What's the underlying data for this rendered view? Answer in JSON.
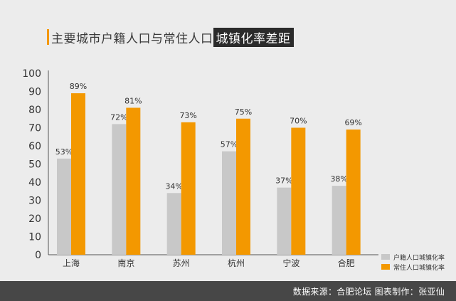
{
  "title": {
    "main": "主要城市户籍人口与常住人口",
    "highlight": "城镇化率差距"
  },
  "footer": "数据来源：合肥论坛   图表制作：张亚仙",
  "colors": {
    "registered": "#c8c8c8",
    "resident": "#f39800",
    "axis": "#555555",
    "text": "#333333"
  },
  "chart_data": {
    "type": "bar",
    "categories": [
      "上海",
      "南京",
      "苏州",
      "杭州",
      "宁波",
      "合肥"
    ],
    "series": [
      {
        "name": "户籍人口城镇化率",
        "values": [
          53,
          72,
          34,
          57,
          37,
          38
        ],
        "labels": [
          "53%",
          "72%",
          "34%",
          "57%",
          "37%",
          "38%"
        ]
      },
      {
        "name": "常住人口城镇化率",
        "values": [
          89,
          81,
          73,
          75,
          70,
          69
        ],
        "labels": [
          "89%",
          "81%",
          "73%",
          "75%",
          "70%",
          "69%"
        ]
      }
    ],
    "yticks": [
      "0",
      "10",
      "20",
      "30",
      "40",
      "50",
      "60",
      "70",
      "80",
      "90",
      "100"
    ],
    "ylim": [
      0,
      100
    ],
    "grid": false,
    "legend_position": "bottom-right"
  }
}
